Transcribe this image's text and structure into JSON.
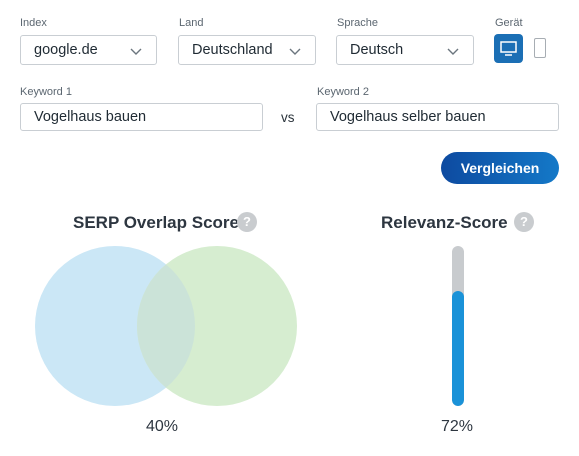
{
  "filters": {
    "index": {
      "label": "Index",
      "value": "google.de"
    },
    "land": {
      "label": "Land",
      "value": "Deutschland"
    },
    "sprache": {
      "label": "Sprache",
      "value": "Deutsch"
    },
    "geraet": {
      "label": "Gerät",
      "selected": "desktop-icon",
      "options_icons": [
        "desktop-icon",
        "mobile-icon"
      ]
    }
  },
  "keywords": {
    "k1": {
      "label": "Keyword 1",
      "value": "Vogelhaus bauen"
    },
    "vs": "vs",
    "k2": {
      "label": "Keyword 2",
      "value": "Vogelhaus selber bauen"
    }
  },
  "compare_button": "Vergleichen",
  "overlap": {
    "title": "SERP Overlap Score",
    "help": "?",
    "value_text": "40%",
    "value": 0.4,
    "colors": {
      "left": "#cbe7f6",
      "right": "#d6edd0",
      "overlap": "#cbe3d8"
    }
  },
  "relevance": {
    "title": "Relevanz-Score",
    "help": "?",
    "value_text": "72%",
    "value": 0.72,
    "colors": {
      "track": "#c8cbce",
      "fill": "#1a92d8"
    }
  },
  "colors": {
    "button": "#0d4aa0",
    "device_selected": "#1b6fb5"
  }
}
